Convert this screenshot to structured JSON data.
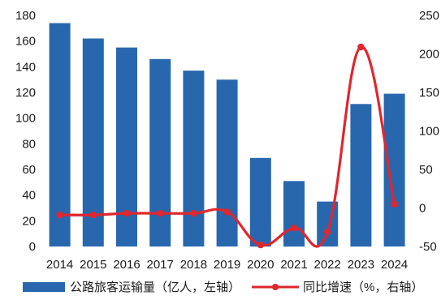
{
  "chart_data": {
    "type": "bar",
    "categories": [
      "2014",
      "2015",
      "2016",
      "2017",
      "2018",
      "2019",
      "2020",
      "2021",
      "2022",
      "2023",
      "2024"
    ],
    "series": [
      {
        "name": "公路旅客运输量（亿人，左轴）",
        "type": "bar",
        "axis": "left",
        "color": "#2867ad",
        "values": [
          174,
          162,
          155,
          146,
          137,
          130,
          69,
          51,
          35,
          111,
          119
        ]
      },
      {
        "name": "同比增速（%，右轴）",
        "type": "line",
        "axis": "right",
        "color": "#e0262e",
        "values": [
          -9,
          -9,
          -7,
          -7,
          -7,
          -5,
          -48,
          -26,
          -31,
          209,
          5
        ]
      }
    ],
    "y_left": {
      "min": 0,
      "max": 180,
      "ticks": [
        0,
        20,
        40,
        60,
        80,
        100,
        120,
        140,
        160,
        180
      ]
    },
    "y_right": {
      "min": -50,
      "max": 250,
      "ticks": [
        -50,
        0,
        50,
        100,
        150,
        200,
        250
      ]
    },
    "grid": false,
    "legend_position": "bottom"
  }
}
